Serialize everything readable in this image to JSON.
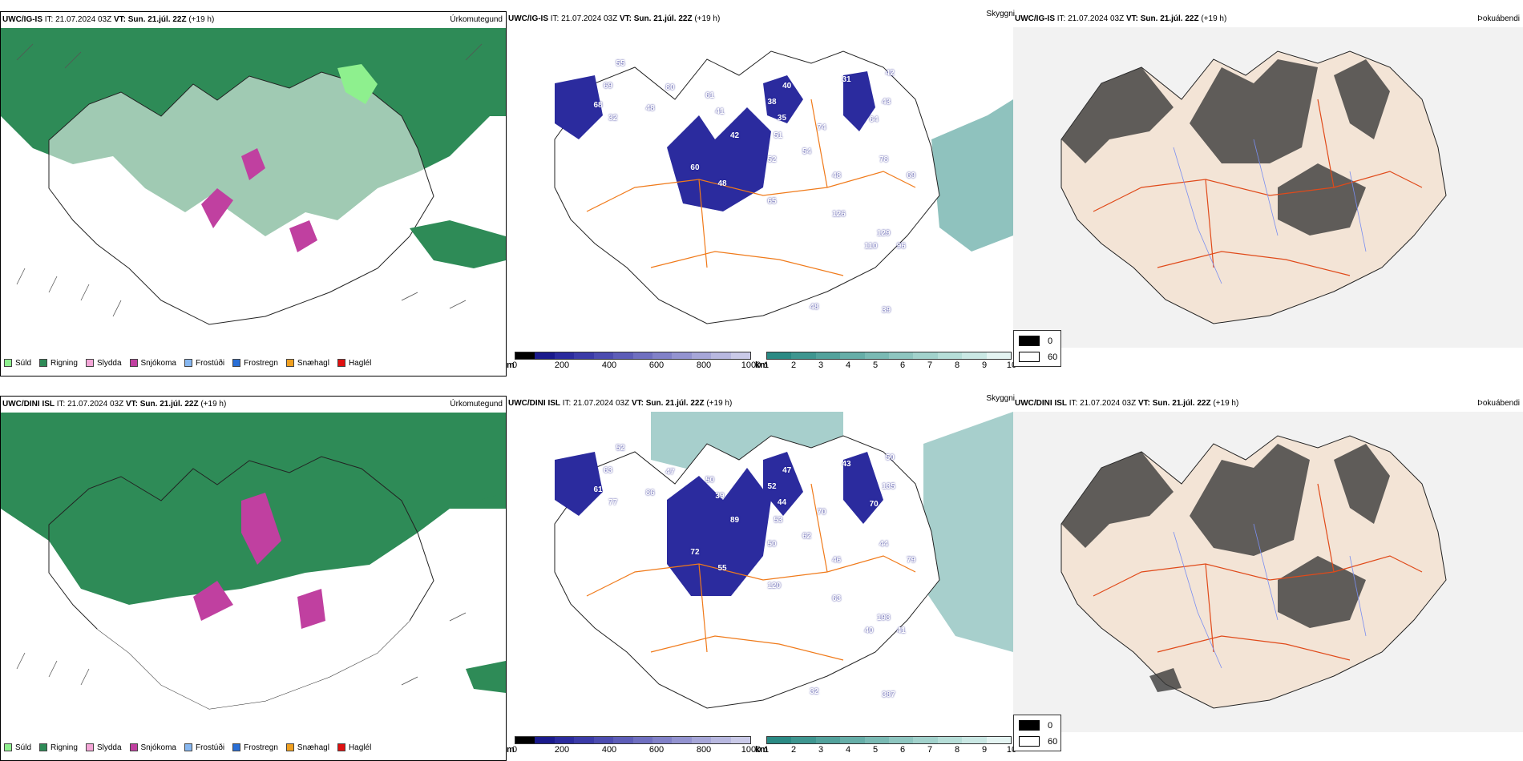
{
  "rows": [
    {
      "model": "UWC/IG-IS",
      "it_label": "IT:",
      "it_value": "21.07.2024 03Z",
      "vt_label": "VT:",
      "vt_value": "Sun. 21.júl. 22Z",
      "lead": "(+19 h)",
      "panel1_title": "Úrkomutegund",
      "panel2_title": "Skyggni",
      "panel3_title": "Þokuábendi",
      "labels": [
        "55",
        "69",
        "68",
        "32",
        "48",
        "80",
        "61",
        "41",
        "38",
        "40",
        "35",
        "31",
        "42",
        "43",
        "64",
        "42",
        "51",
        "54",
        "52",
        "48",
        "74",
        "78",
        "48",
        "65",
        "60",
        "69",
        "129",
        "110",
        "96",
        "39",
        "48",
        "126"
      ]
    },
    {
      "model": "UWC/DINI ISL",
      "it_label": "IT:",
      "it_value": "21.07.2024 03Z",
      "vt_label": "VT:",
      "vt_value": "Sun. 21.júl. 22Z",
      "lead": "(+19 h)",
      "panel1_title": "Úrkomutegund",
      "panel2_title": "Skyggni",
      "panel3_title": "Þokuábendi",
      "labels": [
        "52",
        "63",
        "61",
        "77",
        "86",
        "47",
        "50",
        "39",
        "52",
        "47",
        "44",
        "43",
        "50",
        "135",
        "70",
        "89",
        "53",
        "62",
        "50",
        "46",
        "70",
        "44",
        "55",
        "120",
        "72",
        "79",
        "198",
        "40",
        "41",
        "387",
        "32",
        "63"
      ]
    }
  ],
  "precip_legend": [
    {
      "label": "Súld",
      "color": "#8ef08e"
    },
    {
      "label": "Rigning",
      "color": "#2e8b57"
    },
    {
      "label": "Slydda",
      "color": "#f4a6d7"
    },
    {
      "label": "Snjókoma",
      "color": "#c040a0"
    },
    {
      "label": "Frostúði",
      "color": "#87b7f0"
    },
    {
      "label": "Frostregn",
      "color": "#2a6fd6"
    },
    {
      "label": "Snæhagl",
      "color": "#f0a020"
    },
    {
      "label": "Haglél",
      "color": "#e01010"
    }
  ],
  "ceiling_scale": {
    "unit": "m",
    "ticks": [
      "0",
      "200",
      "400",
      "600",
      "800",
      "1000"
    ],
    "colors": [
      "#000000",
      "#1a1a8c",
      "#2b2b9e",
      "#3b3ba8",
      "#4c4cb0",
      "#5d5db8",
      "#6f6fc0",
      "#8181c8",
      "#9393d0",
      "#a6a6d8",
      "#b8b8e0",
      "#cacae8"
    ]
  },
  "visibility_scale": {
    "unit": "km",
    "ticks": [
      "1",
      "2",
      "3",
      "4",
      "5",
      "6",
      "7",
      "8",
      "9",
      "10"
    ],
    "colors": [
      "#2a8a84",
      "#3e9690",
      "#52a29c",
      "#66aea8",
      "#7abab4",
      "#8ec6c0",
      "#a2d2cc",
      "#b6ded8",
      "#cae8e4",
      "#e4f4f2"
    ]
  },
  "fog_legend": [
    {
      "label": "0",
      "color": "#000000"
    },
    {
      "label": "60",
      "color": "#ffffff"
    }
  ],
  "colors": {
    "rain": "#2e8b57",
    "drizzle": "#8ef08e",
    "snow": "#c040a0",
    "sleet": "#f4a6d7",
    "ceiling": "#2b2b9e",
    "visibility": "#5fa8a2",
    "roads": "#f07a1a",
    "land": "#f3e4d6"
  }
}
